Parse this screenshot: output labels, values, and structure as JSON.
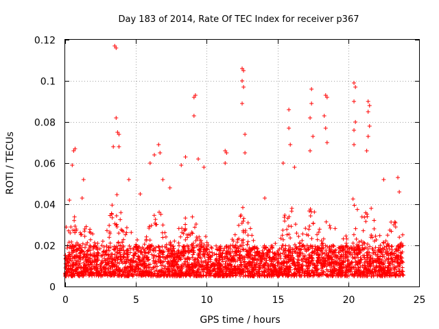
{
  "chart_data": {
    "type": "scatter",
    "title": "Day 183 of 2014, Rate Of TEC Index for receiver p367",
    "xlabel": "GPS time / hours",
    "ylabel": "ROTI / TECUs",
    "xlim": [
      0,
      25
    ],
    "ylim": [
      0,
      0.12
    ],
    "x_ticks": [
      0,
      5,
      10,
      15,
      20,
      25
    ],
    "x_tick_labels": [
      "0",
      "5",
      "10",
      "15",
      "20",
      "25"
    ],
    "y_ticks": [
      0,
      0.02,
      0.04,
      0.06,
      0.08,
      0.1,
      0.12
    ],
    "y_tick_labels": [
      "0",
      "0.02",
      "0.04",
      "0.06",
      "0.08",
      "0.1",
      "0.12"
    ],
    "grid": true,
    "marker": "+",
    "color": "#ff0000",
    "series": [
      {
        "name": "ROTI",
        "notable_points": [
          {
            "x": 0.3,
            "y": 0.042
          },
          {
            "x": 0.5,
            "y": 0.059
          },
          {
            "x": 0.6,
            "y": 0.066
          },
          {
            "x": 0.7,
            "y": 0.067
          },
          {
            "x": 1.2,
            "y": 0.043
          },
          {
            "x": 1.3,
            "y": 0.052
          },
          {
            "x": 3.4,
            "y": 0.068
          },
          {
            "x": 3.5,
            "y": 0.117
          },
          {
            "x": 3.6,
            "y": 0.116
          },
          {
            "x": 3.6,
            "y": 0.082
          },
          {
            "x": 3.7,
            "y": 0.075
          },
          {
            "x": 3.8,
            "y": 0.074
          },
          {
            "x": 3.8,
            "y": 0.068
          },
          {
            "x": 4.5,
            "y": 0.052
          },
          {
            "x": 5.3,
            "y": 0.045
          },
          {
            "x": 6.0,
            "y": 0.06
          },
          {
            "x": 6.3,
            "y": 0.064
          },
          {
            "x": 6.6,
            "y": 0.069
          },
          {
            "x": 6.7,
            "y": 0.065
          },
          {
            "x": 6.9,
            "y": 0.052
          },
          {
            "x": 7.4,
            "y": 0.048
          },
          {
            "x": 8.2,
            "y": 0.059
          },
          {
            "x": 8.5,
            "y": 0.063
          },
          {
            "x": 9.1,
            "y": 0.092
          },
          {
            "x": 9.2,
            "y": 0.093
          },
          {
            "x": 9.1,
            "y": 0.083
          },
          {
            "x": 9.4,
            "y": 0.062
          },
          {
            "x": 9.8,
            "y": 0.058
          },
          {
            "x": 11.3,
            "y": 0.066
          },
          {
            "x": 11.4,
            "y": 0.065
          },
          {
            "x": 11.3,
            "y": 0.06
          },
          {
            "x": 12.5,
            "y": 0.106
          },
          {
            "x": 12.6,
            "y": 0.105
          },
          {
            "x": 12.5,
            "y": 0.1
          },
          {
            "x": 12.6,
            "y": 0.097
          },
          {
            "x": 12.5,
            "y": 0.089
          },
          {
            "x": 12.7,
            "y": 0.074
          },
          {
            "x": 12.7,
            "y": 0.065
          },
          {
            "x": 14.1,
            "y": 0.043
          },
          {
            "x": 15.4,
            "y": 0.06
          },
          {
            "x": 15.8,
            "y": 0.086
          },
          {
            "x": 15.8,
            "y": 0.077
          },
          {
            "x": 15.9,
            "y": 0.069
          },
          {
            "x": 16.2,
            "y": 0.058
          },
          {
            "x": 17.4,
            "y": 0.096
          },
          {
            "x": 17.4,
            "y": 0.089
          },
          {
            "x": 17.3,
            "y": 0.082
          },
          {
            "x": 17.5,
            "y": 0.073
          },
          {
            "x": 17.3,
            "y": 0.066
          },
          {
            "x": 18.4,
            "y": 0.093
          },
          {
            "x": 18.5,
            "y": 0.092
          },
          {
            "x": 18.3,
            "y": 0.083
          },
          {
            "x": 18.4,
            "y": 0.077
          },
          {
            "x": 18.5,
            "y": 0.07
          },
          {
            "x": 20.4,
            "y": 0.099
          },
          {
            "x": 20.5,
            "y": 0.097
          },
          {
            "x": 20.4,
            "y": 0.09
          },
          {
            "x": 20.5,
            "y": 0.08
          },
          {
            "x": 20.4,
            "y": 0.076
          },
          {
            "x": 20.4,
            "y": 0.069
          },
          {
            "x": 21.4,
            "y": 0.09
          },
          {
            "x": 21.5,
            "y": 0.088
          },
          {
            "x": 21.4,
            "y": 0.085
          },
          {
            "x": 21.5,
            "y": 0.078
          },
          {
            "x": 21.4,
            "y": 0.073
          },
          {
            "x": 21.3,
            "y": 0.066
          },
          {
            "x": 22.5,
            "y": 0.052
          },
          {
            "x": 23.5,
            "y": 0.053
          },
          {
            "x": 23.6,
            "y": 0.046
          }
        ],
        "baseline_range": [
          0.005,
          0.02
        ],
        "time_range": [
          0,
          23.9
        ]
      }
    ]
  }
}
